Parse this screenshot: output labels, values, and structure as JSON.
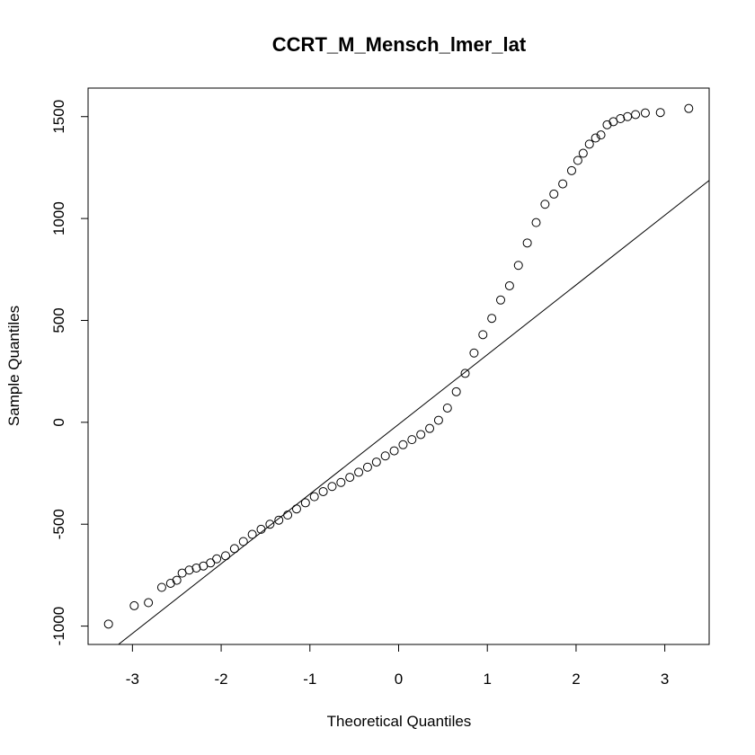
{
  "chart_data": {
    "type": "scatter",
    "title": "CCRT_M_Mensch_lmer_lat",
    "xlabel": "Theoretical Quantiles",
    "ylabel": "Sample Quantiles",
    "xlim": [
      -3.5,
      3.5
    ],
    "ylim": [
      -1090,
      1640
    ],
    "x_ticks": [
      -3,
      -2,
      -1,
      0,
      1,
      2,
      3
    ],
    "x_tick_labels": [
      "-3",
      "-2",
      "-1",
      "0",
      "1",
      "2",
      "3"
    ],
    "y_ticks": [
      -1000,
      -500,
      0,
      500,
      1000,
      1500
    ],
    "y_tick_labels": [
      "-1000",
      "-500",
      "0",
      "500",
      "1000",
      "1500"
    ],
    "reference_line": {
      "intercept": -10,
      "slope": 342
    },
    "grid": false,
    "legend": "none",
    "marker": "open-circle",
    "series": [
      {
        "points": [
          [
            -3.27,
            -990
          ],
          [
            -2.98,
            -900
          ],
          [
            -2.82,
            -885
          ],
          [
            -2.67,
            -810
          ],
          [
            -2.57,
            -790
          ],
          [
            -2.5,
            -775
          ],
          [
            -2.44,
            -740
          ],
          [
            -2.36,
            -725
          ],
          [
            -2.28,
            -715
          ],
          [
            -2.2,
            -705
          ],
          [
            -2.12,
            -690
          ],
          [
            -2.05,
            -670
          ],
          [
            -1.95,
            -655
          ],
          [
            -1.85,
            -620
          ],
          [
            -1.75,
            -585
          ],
          [
            -1.65,
            -550
          ],
          [
            -1.55,
            -525
          ],
          [
            -1.45,
            -500
          ],
          [
            -1.35,
            -480
          ],
          [
            -1.25,
            -455
          ],
          [
            -1.15,
            -425
          ],
          [
            -1.05,
            -395
          ],
          [
            -0.95,
            -365
          ],
          [
            -0.85,
            -340
          ],
          [
            -0.75,
            -315
          ],
          [
            -0.65,
            -295
          ],
          [
            -0.55,
            -270
          ],
          [
            -0.45,
            -245
          ],
          [
            -0.35,
            -220
          ],
          [
            -0.25,
            -195
          ],
          [
            -0.15,
            -165
          ],
          [
            -0.05,
            -140
          ],
          [
            0.05,
            -110
          ],
          [
            0.15,
            -85
          ],
          [
            0.25,
            -60
          ],
          [
            0.35,
            -30
          ],
          [
            0.45,
            10
          ],
          [
            0.55,
            70
          ],
          [
            0.65,
            150
          ],
          [
            0.75,
            240
          ],
          [
            0.85,
            340
          ],
          [
            0.95,
            430
          ],
          [
            1.05,
            510
          ],
          [
            1.15,
            600
          ],
          [
            1.25,
            670
          ],
          [
            1.35,
            770
          ],
          [
            1.45,
            880
          ],
          [
            1.55,
            980
          ],
          [
            1.65,
            1070
          ],
          [
            1.75,
            1120
          ],
          [
            1.85,
            1170
          ],
          [
            1.95,
            1235
          ],
          [
            2.02,
            1285
          ],
          [
            2.08,
            1320
          ],
          [
            2.15,
            1365
          ],
          [
            2.22,
            1395
          ],
          [
            2.28,
            1410
          ],
          [
            2.35,
            1460
          ],
          [
            2.42,
            1475
          ],
          [
            2.5,
            1490
          ],
          [
            2.58,
            1500
          ],
          [
            2.67,
            1510
          ],
          [
            2.78,
            1518
          ],
          [
            2.95,
            1520
          ],
          [
            3.27,
            1540
          ]
        ]
      }
    ]
  }
}
